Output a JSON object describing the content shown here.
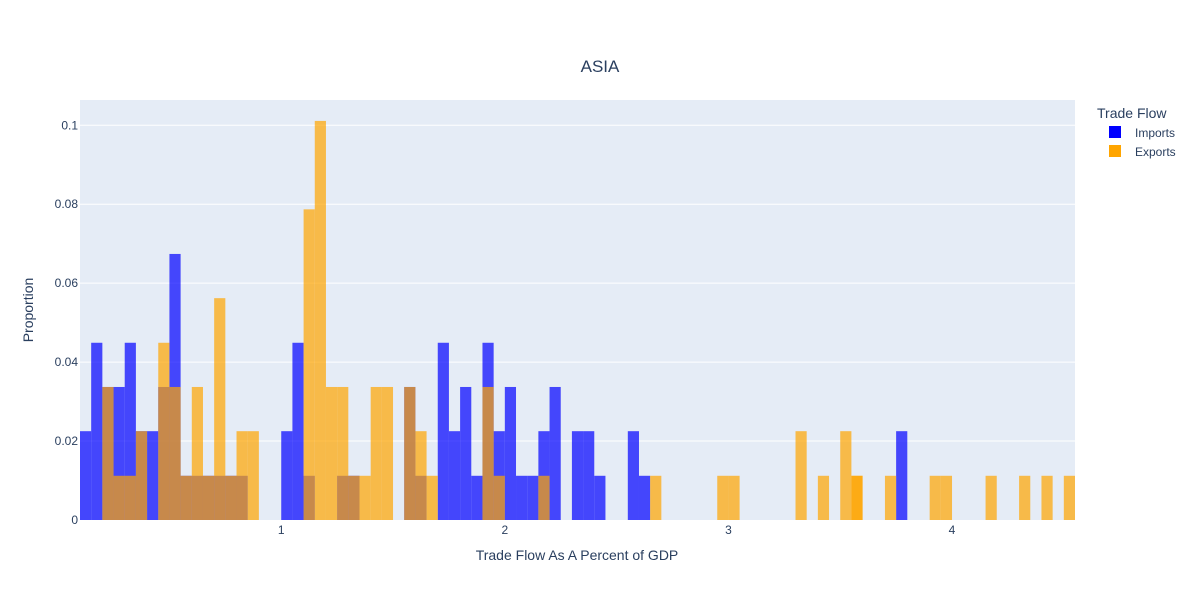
{
  "chart_data": {
    "type": "histogram",
    "title": "ASIA",
    "xlabel": "Trade Flow As A Percent of GDP",
    "ylabel": "Proportion",
    "xlim": [
      0.1,
      4.55
    ],
    "ylim": [
      0,
      0.1064
    ],
    "bin_start": 0.1,
    "bin_width": 0.05,
    "x_ticks": [
      1,
      2,
      3,
      4
    ],
    "y_ticks": [
      0,
      0.02,
      0.04,
      0.06,
      0.08,
      0.1
    ],
    "y_tick_labels": [
      "0",
      "0.02",
      "0.04",
      "0.06",
      "0.08",
      "0.1"
    ],
    "grid": true,
    "barmode": "overlay",
    "legend": {
      "title": "Trade Flow",
      "position": "top-right"
    },
    "series": [
      {
        "name": "Imports",
        "color": "#0000ff",
        "opacity": 0.7,
        "values": [
          0.0225,
          0.0449,
          0.0337,
          0.0337,
          0.0449,
          0.0225,
          0.0225,
          0.0337,
          0.0674,
          0.0112,
          0.0112,
          0.0112,
          0.0112,
          0.0112,
          0.0112,
          0.0,
          0.0,
          0.0,
          0.0225,
          0.0449,
          0.0112,
          0.0,
          0.0,
          0.0112,
          0.0112,
          0.0,
          0.0,
          0.0,
          0.0,
          0.0337,
          0.0112,
          0.0,
          0.0449,
          0.0225,
          0.0337,
          0.0112,
          0.0449,
          0.0225,
          0.0337,
          0.0112,
          0.0112,
          0.0225,
          0.0337,
          0.0,
          0.0225,
          0.0225,
          0.0112,
          0.0,
          0.0,
          0.0225,
          0.0112,
          0.0,
          0.0,
          0.0,
          0.0,
          0.0,
          0.0,
          0.0,
          0.0,
          0.0,
          0.0,
          0.0,
          0.0,
          0.0,
          0.0,
          0.0,
          0.0,
          0.0,
          0.0,
          0.0,
          0.0,
          0.0,
          0.0,
          0.0225,
          0.0,
          0.0,
          0.0,
          0.0,
          0.0,
          0.0,
          0.0,
          0.0,
          0.0,
          0.0,
          0.0,
          0.0,
          0.0,
          0.0,
          0.0,
          0.0
        ]
      },
      {
        "name": "Exports",
        "color": "#ffa500",
        "opacity": 0.7,
        "values": [
          0.0,
          0.0,
          0.0337,
          0.0112,
          0.0112,
          0.0225,
          0.0,
          0.0449,
          0.0337,
          0.0112,
          0.0337,
          0.0112,
          0.0562,
          0.0112,
          0.0225,
          0.0225,
          0.0,
          0.0,
          0.0,
          0.0,
          0.0787,
          0.1011,
          0.0337,
          0.0337,
          0.0112,
          0.0112,
          0.0337,
          0.0337,
          0.0,
          0.0337,
          0.0225,
          0.0112,
          0.0,
          0.0,
          0.0,
          0.0,
          0.0337,
          0.0112,
          0.0,
          0.0,
          0.0,
          0.0112,
          0.0,
          0.0,
          0.0,
          0.0,
          0.0,
          0.0,
          0.0,
          0.0,
          0.0,
          0.0112,
          0.0,
          0.0,
          0.0,
          0.0,
          0.0,
          0.0112,
          0.0112,
          0.0,
          0.0,
          0.0,
          0.0,
          0.0,
          0.0225,
          0.0,
          0.0,
          0.0,
          0.0225,
          0.0112,
          0.0,
          0.0,
          0.0,
          0.0,
          0.0,
          0.0,
          0.0112,
          0.0,
          0.0,
          0.0,
          0.0,
          0.0,
          0.0,
          0.0,
          0.0,
          0.0,
          0.0,
          0.0,
          0.0,
          0.0
        ]
      }
    ],
    "extra_bars": {
      "Exports": [
        {
          "x0": 3.4,
          "value": 0.0112
        },
        {
          "x0": 3.55,
          "value": 0.0112
        },
        {
          "x0": 3.7,
          "value": 0.0112
        },
        {
          "x0": 3.95,
          "value": 0.0112
        },
        {
          "x0": 4.15,
          "value": 0.0112
        },
        {
          "x0": 4.3,
          "value": 0.0112
        },
        {
          "x0": 4.4,
          "value": 0.0112
        },
        {
          "x0": 4.5,
          "value": 0.0112
        }
      ]
    }
  }
}
